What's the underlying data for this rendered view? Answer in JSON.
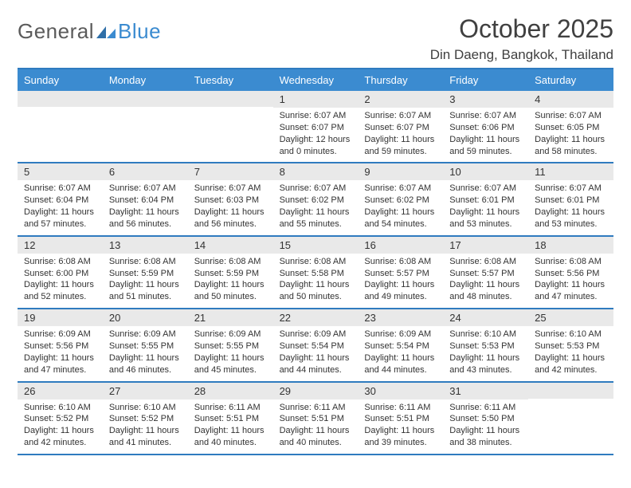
{
  "colors": {
    "header_bar": "#3b8bd0",
    "header_border": "#2f7bbf",
    "daynum_bg": "#e9e9e9",
    "text": "#333333",
    "title_text": "#404040",
    "logo_gray": "#5b5b5b",
    "logo_blue": "#3b8bd0",
    "background": "#ffffff"
  },
  "logo": {
    "word1": "General",
    "word2": "Blue"
  },
  "title": "October 2025",
  "location": "Din Daeng, Bangkok, Thailand",
  "day_names": [
    "Sunday",
    "Monday",
    "Tuesday",
    "Wednesday",
    "Thursday",
    "Friday",
    "Saturday"
  ],
  "weeks": [
    [
      {
        "n": "",
        "lines": []
      },
      {
        "n": "",
        "lines": []
      },
      {
        "n": "",
        "lines": []
      },
      {
        "n": "1",
        "lines": [
          "Sunrise: 6:07 AM",
          "Sunset: 6:07 PM",
          "Daylight: 12 hours",
          "and 0 minutes."
        ]
      },
      {
        "n": "2",
        "lines": [
          "Sunrise: 6:07 AM",
          "Sunset: 6:07 PM",
          "Daylight: 11 hours",
          "and 59 minutes."
        ]
      },
      {
        "n": "3",
        "lines": [
          "Sunrise: 6:07 AM",
          "Sunset: 6:06 PM",
          "Daylight: 11 hours",
          "and 59 minutes."
        ]
      },
      {
        "n": "4",
        "lines": [
          "Sunrise: 6:07 AM",
          "Sunset: 6:05 PM",
          "Daylight: 11 hours",
          "and 58 minutes."
        ]
      }
    ],
    [
      {
        "n": "5",
        "lines": [
          "Sunrise: 6:07 AM",
          "Sunset: 6:04 PM",
          "Daylight: 11 hours",
          "and 57 minutes."
        ]
      },
      {
        "n": "6",
        "lines": [
          "Sunrise: 6:07 AM",
          "Sunset: 6:04 PM",
          "Daylight: 11 hours",
          "and 56 minutes."
        ]
      },
      {
        "n": "7",
        "lines": [
          "Sunrise: 6:07 AM",
          "Sunset: 6:03 PM",
          "Daylight: 11 hours",
          "and 56 minutes."
        ]
      },
      {
        "n": "8",
        "lines": [
          "Sunrise: 6:07 AM",
          "Sunset: 6:02 PM",
          "Daylight: 11 hours",
          "and 55 minutes."
        ]
      },
      {
        "n": "9",
        "lines": [
          "Sunrise: 6:07 AM",
          "Sunset: 6:02 PM",
          "Daylight: 11 hours",
          "and 54 minutes."
        ]
      },
      {
        "n": "10",
        "lines": [
          "Sunrise: 6:07 AM",
          "Sunset: 6:01 PM",
          "Daylight: 11 hours",
          "and 53 minutes."
        ]
      },
      {
        "n": "11",
        "lines": [
          "Sunrise: 6:07 AM",
          "Sunset: 6:01 PM",
          "Daylight: 11 hours",
          "and 53 minutes."
        ]
      }
    ],
    [
      {
        "n": "12",
        "lines": [
          "Sunrise: 6:08 AM",
          "Sunset: 6:00 PM",
          "Daylight: 11 hours",
          "and 52 minutes."
        ]
      },
      {
        "n": "13",
        "lines": [
          "Sunrise: 6:08 AM",
          "Sunset: 5:59 PM",
          "Daylight: 11 hours",
          "and 51 minutes."
        ]
      },
      {
        "n": "14",
        "lines": [
          "Sunrise: 6:08 AM",
          "Sunset: 5:59 PM",
          "Daylight: 11 hours",
          "and 50 minutes."
        ]
      },
      {
        "n": "15",
        "lines": [
          "Sunrise: 6:08 AM",
          "Sunset: 5:58 PM",
          "Daylight: 11 hours",
          "and 50 minutes."
        ]
      },
      {
        "n": "16",
        "lines": [
          "Sunrise: 6:08 AM",
          "Sunset: 5:57 PM",
          "Daylight: 11 hours",
          "and 49 minutes."
        ]
      },
      {
        "n": "17",
        "lines": [
          "Sunrise: 6:08 AM",
          "Sunset: 5:57 PM",
          "Daylight: 11 hours",
          "and 48 minutes."
        ]
      },
      {
        "n": "18",
        "lines": [
          "Sunrise: 6:08 AM",
          "Sunset: 5:56 PM",
          "Daylight: 11 hours",
          "and 47 minutes."
        ]
      }
    ],
    [
      {
        "n": "19",
        "lines": [
          "Sunrise: 6:09 AM",
          "Sunset: 5:56 PM",
          "Daylight: 11 hours",
          "and 47 minutes."
        ]
      },
      {
        "n": "20",
        "lines": [
          "Sunrise: 6:09 AM",
          "Sunset: 5:55 PM",
          "Daylight: 11 hours",
          "and 46 minutes."
        ]
      },
      {
        "n": "21",
        "lines": [
          "Sunrise: 6:09 AM",
          "Sunset: 5:55 PM",
          "Daylight: 11 hours",
          "and 45 minutes."
        ]
      },
      {
        "n": "22",
        "lines": [
          "Sunrise: 6:09 AM",
          "Sunset: 5:54 PM",
          "Daylight: 11 hours",
          "and 44 minutes."
        ]
      },
      {
        "n": "23",
        "lines": [
          "Sunrise: 6:09 AM",
          "Sunset: 5:54 PM",
          "Daylight: 11 hours",
          "and 44 minutes."
        ]
      },
      {
        "n": "24",
        "lines": [
          "Sunrise: 6:10 AM",
          "Sunset: 5:53 PM",
          "Daylight: 11 hours",
          "and 43 minutes."
        ]
      },
      {
        "n": "25",
        "lines": [
          "Sunrise: 6:10 AM",
          "Sunset: 5:53 PM",
          "Daylight: 11 hours",
          "and 42 minutes."
        ]
      }
    ],
    [
      {
        "n": "26",
        "lines": [
          "Sunrise: 6:10 AM",
          "Sunset: 5:52 PM",
          "Daylight: 11 hours",
          "and 42 minutes."
        ]
      },
      {
        "n": "27",
        "lines": [
          "Sunrise: 6:10 AM",
          "Sunset: 5:52 PM",
          "Daylight: 11 hours",
          "and 41 minutes."
        ]
      },
      {
        "n": "28",
        "lines": [
          "Sunrise: 6:11 AM",
          "Sunset: 5:51 PM",
          "Daylight: 11 hours",
          "and 40 minutes."
        ]
      },
      {
        "n": "29",
        "lines": [
          "Sunrise: 6:11 AM",
          "Sunset: 5:51 PM",
          "Daylight: 11 hours",
          "and 40 minutes."
        ]
      },
      {
        "n": "30",
        "lines": [
          "Sunrise: 6:11 AM",
          "Sunset: 5:51 PM",
          "Daylight: 11 hours",
          "and 39 minutes."
        ]
      },
      {
        "n": "31",
        "lines": [
          "Sunrise: 6:11 AM",
          "Sunset: 5:50 PM",
          "Daylight: 11 hours",
          "and 38 minutes."
        ]
      },
      {
        "n": "",
        "lines": []
      }
    ]
  ]
}
